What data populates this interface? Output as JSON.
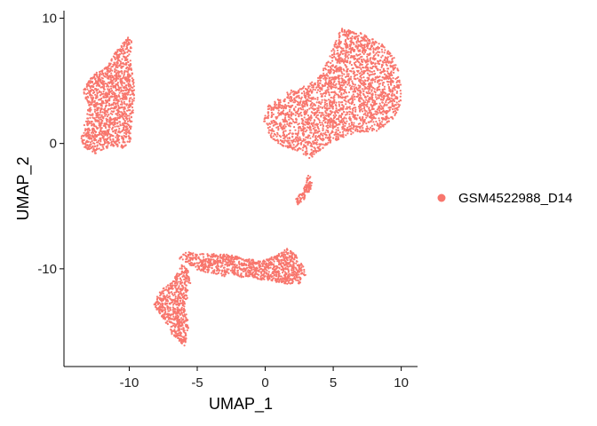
{
  "chart_data": {
    "type": "scatter",
    "xlabel": "UMAP_1",
    "ylabel": "UMAP_2",
    "xlim": [
      -14.8,
      11.2
    ],
    "ylim": [
      -17.8,
      10.6
    ],
    "x_ticks": [
      -10,
      -5,
      0,
      5,
      10
    ],
    "y_ticks": [
      -10,
      0,
      10
    ],
    "grid": false,
    "legend_position": "right",
    "series": [
      {
        "name": "GSM4522988_D14",
        "color": "#F8766D"
      }
    ],
    "clusters": [
      {
        "id": "upper-left",
        "outline": [
          [
            -10.1,
            8.6
          ],
          [
            -9.8,
            8.1
          ],
          [
            -9.9,
            6.5
          ],
          [
            -9.7,
            5.2
          ],
          [
            -9.6,
            4.0
          ],
          [
            -9.7,
            2.4
          ],
          [
            -9.8,
            1.3
          ],
          [
            -9.9,
            0.2
          ],
          [
            -10.5,
            -0.4
          ],
          [
            -11.3,
            -0.3
          ],
          [
            -11.8,
            -0.4
          ],
          [
            -12.6,
            -0.9
          ],
          [
            -13.3,
            -0.5
          ],
          [
            -13.6,
            0.6
          ],
          [
            -13.2,
            1.8
          ],
          [
            -13.0,
            3.0
          ],
          [
            -13.4,
            4.2
          ],
          [
            -12.9,
            5.3
          ],
          [
            -12.2,
            5.8
          ],
          [
            -11.6,
            6.2
          ],
          [
            -11.2,
            7.0
          ],
          [
            -10.6,
            7.9
          ]
        ],
        "weight": 1400
      },
      {
        "id": "upper-right",
        "outline": [
          [
            5.6,
            9.2
          ],
          [
            7.2,
            8.8
          ],
          [
            8.6,
            8.0
          ],
          [
            9.5,
            6.8
          ],
          [
            10.0,
            5.2
          ],
          [
            10.0,
            3.2
          ],
          [
            9.3,
            1.7
          ],
          [
            8.2,
            1.0
          ],
          [
            6.5,
            0.8
          ],
          [
            5.7,
            0.4
          ],
          [
            4.5,
            -0.2
          ],
          [
            3.3,
            -1.2
          ],
          [
            2.3,
            -0.6
          ],
          [
            1.2,
            -0.2
          ],
          [
            0.3,
            0.6
          ],
          [
            -0.1,
            1.8
          ],
          [
            0.2,
            3.0
          ],
          [
            1.0,
            3.6
          ],
          [
            1.8,
            4.2
          ],
          [
            3.0,
            4.6
          ],
          [
            4.0,
            5.4
          ],
          [
            4.6,
            6.6
          ],
          [
            5.1,
            8.0
          ]
        ],
        "weight": 2600
      },
      {
        "id": "tail",
        "outline": [
          [
            3.3,
            -2.5
          ],
          [
            3.5,
            -3.4
          ],
          [
            3.0,
            -4.3
          ],
          [
            2.4,
            -4.9
          ],
          [
            2.1,
            -4.6
          ],
          [
            2.6,
            -4.0
          ],
          [
            3.0,
            -3.2
          ],
          [
            3.1,
            -2.6
          ]
        ],
        "weight": 90
      },
      {
        "id": "lower-band",
        "outline": [
          [
            -6.0,
            -8.6
          ],
          [
            -4.8,
            -8.8
          ],
          [
            -3.0,
            -8.8
          ],
          [
            -1.3,
            -9.2
          ],
          [
            0.0,
            -9.3
          ],
          [
            1.0,
            -8.8
          ],
          [
            1.6,
            -8.4
          ],
          [
            2.2,
            -8.8
          ],
          [
            2.8,
            -9.8
          ],
          [
            3.0,
            -10.6
          ],
          [
            2.6,
            -11.2
          ],
          [
            1.6,
            -11.2
          ],
          [
            0.5,
            -11.0
          ],
          [
            -1.2,
            -10.7
          ],
          [
            -3.0,
            -10.6
          ],
          [
            -4.8,
            -10.2
          ],
          [
            -5.8,
            -9.6
          ],
          [
            -6.3,
            -9.2
          ]
        ],
        "weight": 1050
      },
      {
        "id": "lower-arm",
        "outline": [
          [
            -6.1,
            -9.6
          ],
          [
            -6.6,
            -10.6
          ],
          [
            -7.0,
            -11.2
          ],
          [
            -7.6,
            -11.6
          ],
          [
            -8.0,
            -12.2
          ],
          [
            -8.2,
            -13.0
          ],
          [
            -7.7,
            -13.8
          ],
          [
            -7.1,
            -14.6
          ],
          [
            -6.8,
            -15.4
          ],
          [
            -5.9,
            -16.2
          ],
          [
            -5.7,
            -15.3
          ],
          [
            -5.6,
            -14.2
          ],
          [
            -5.9,
            -13.2
          ],
          [
            -5.7,
            -12.2
          ],
          [
            -5.5,
            -11.2
          ],
          [
            -5.6,
            -10.2
          ]
        ],
        "weight": 620
      }
    ]
  }
}
